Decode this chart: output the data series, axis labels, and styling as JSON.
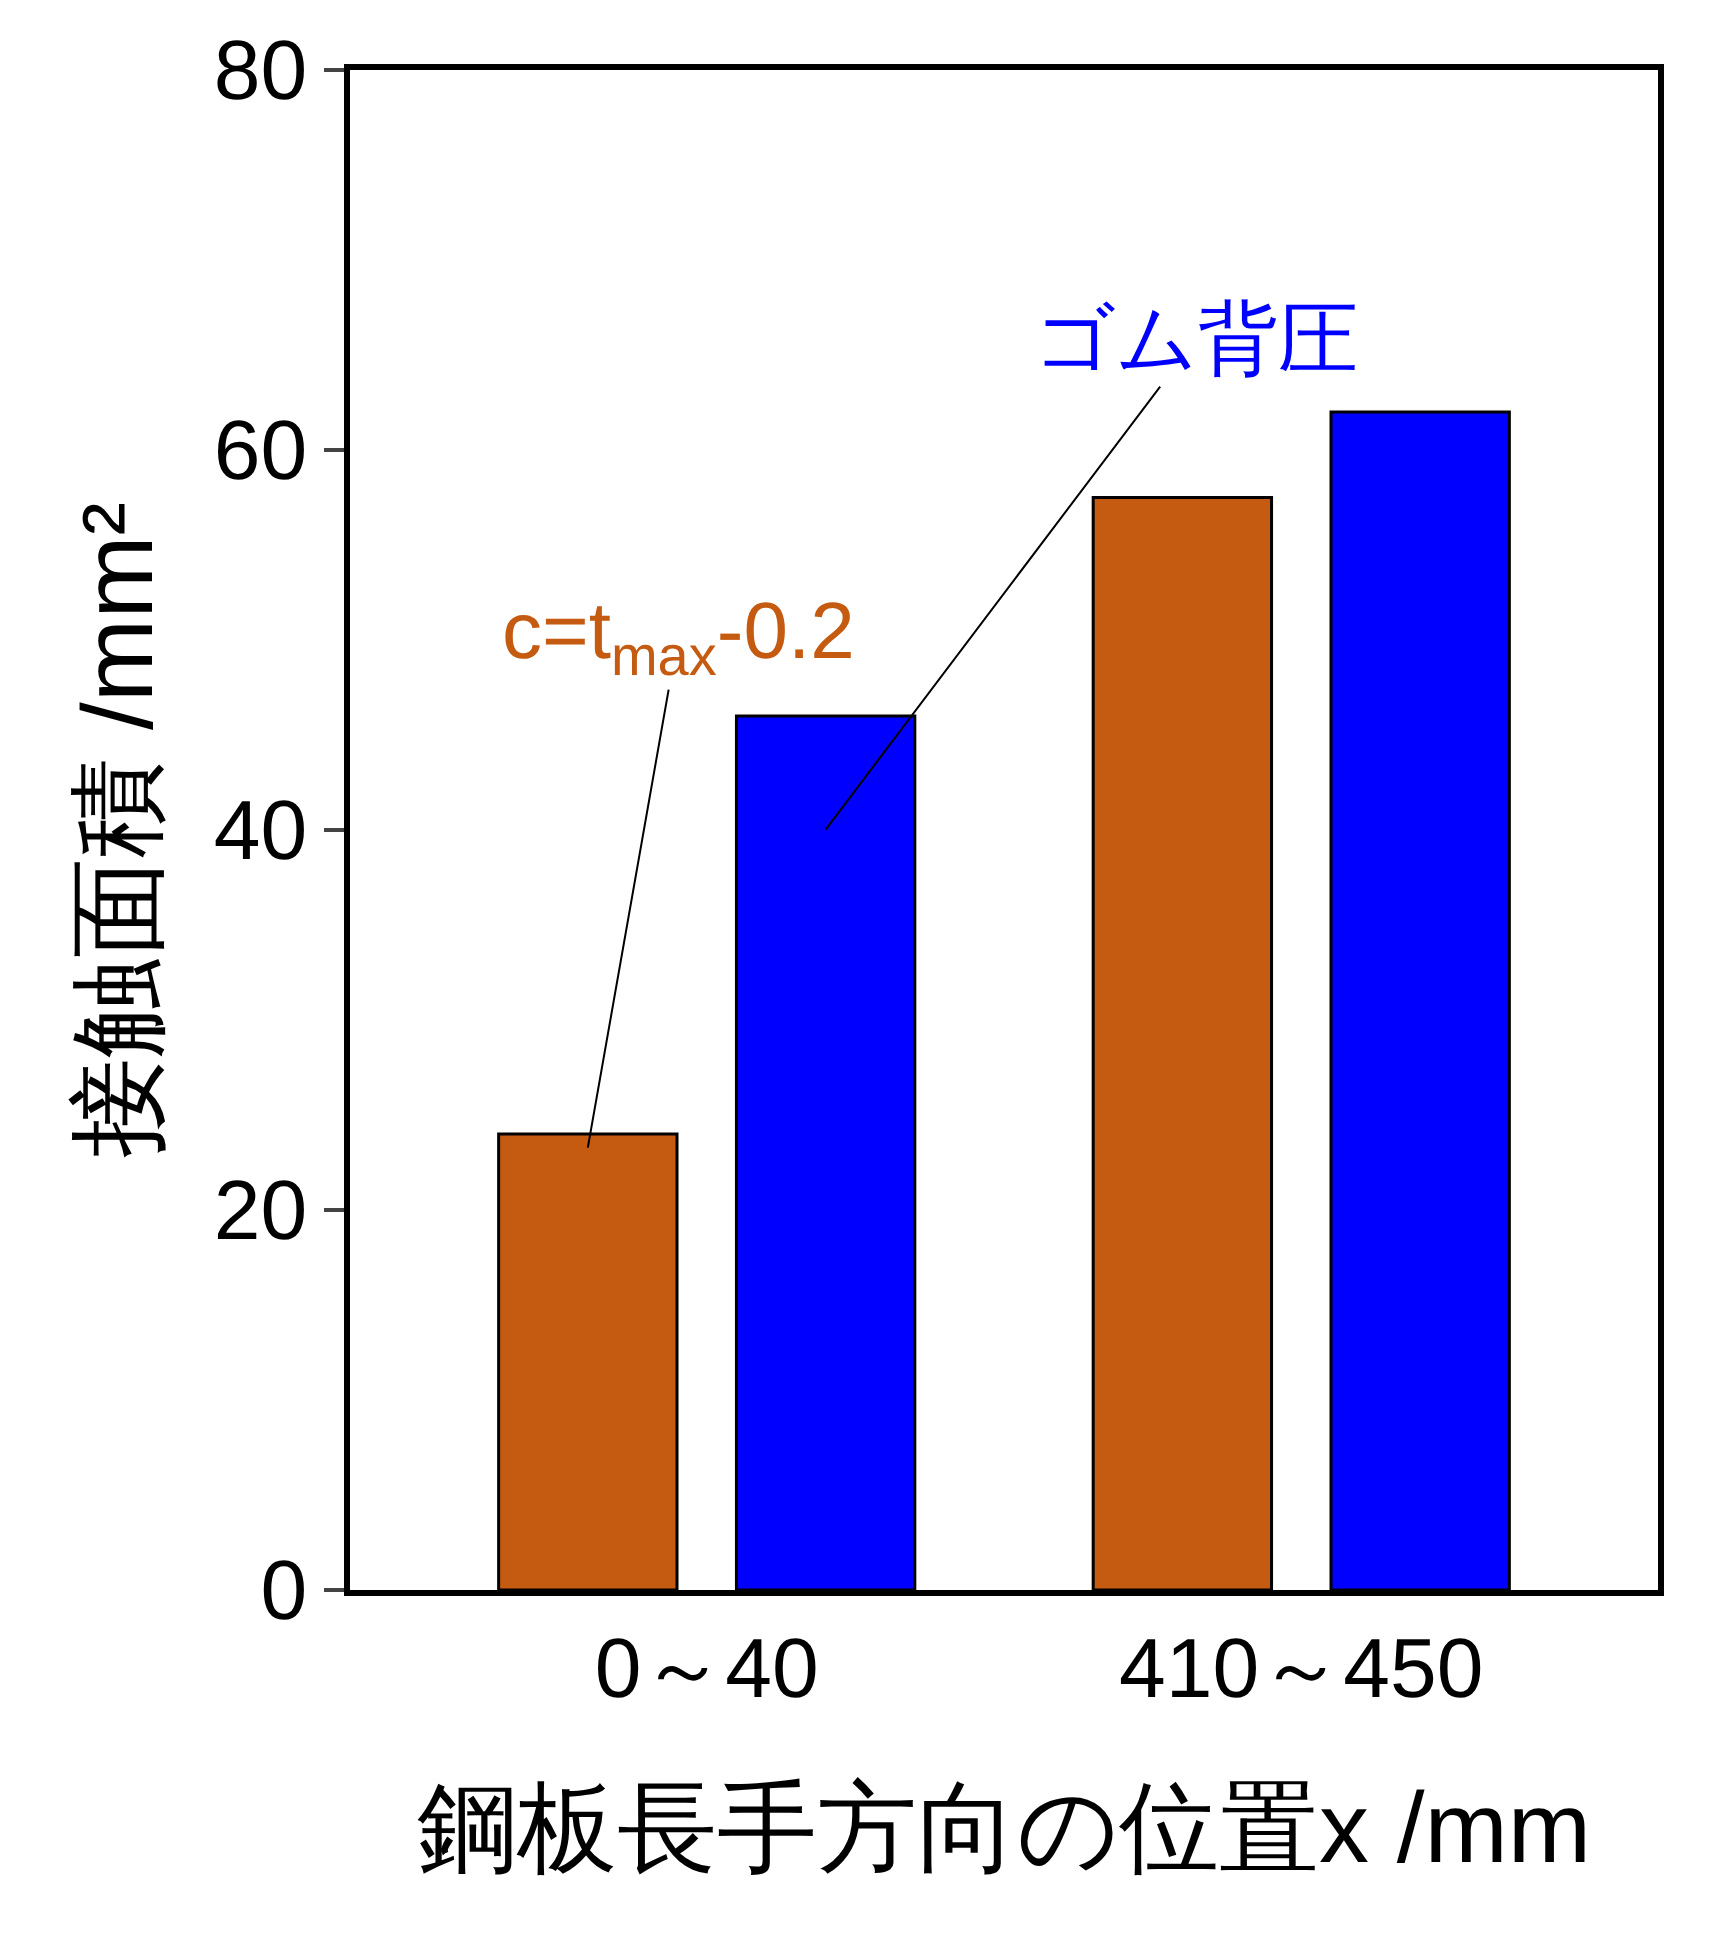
{
  "chart_data": {
    "type": "bar",
    "xlabel": "鋼板長手方向の位置x /mm",
    "ylabel": "接触面積 /mm²",
    "categories": [
      "0～40",
      "410～450"
    ],
    "series": [
      {
        "name": "c=t$_{max}$-0.2",
        "color": "#c55a11",
        "values": [
          24,
          57.5
        ]
      },
      {
        "name": "ゴム背圧",
        "color": "#0000ff",
        "values": [
          46,
          62
        ]
      }
    ],
    "ylim": [
      0,
      80
    ],
    "yticks": [
      0,
      20,
      40,
      60,
      80
    ],
    "legend": false
  }
}
